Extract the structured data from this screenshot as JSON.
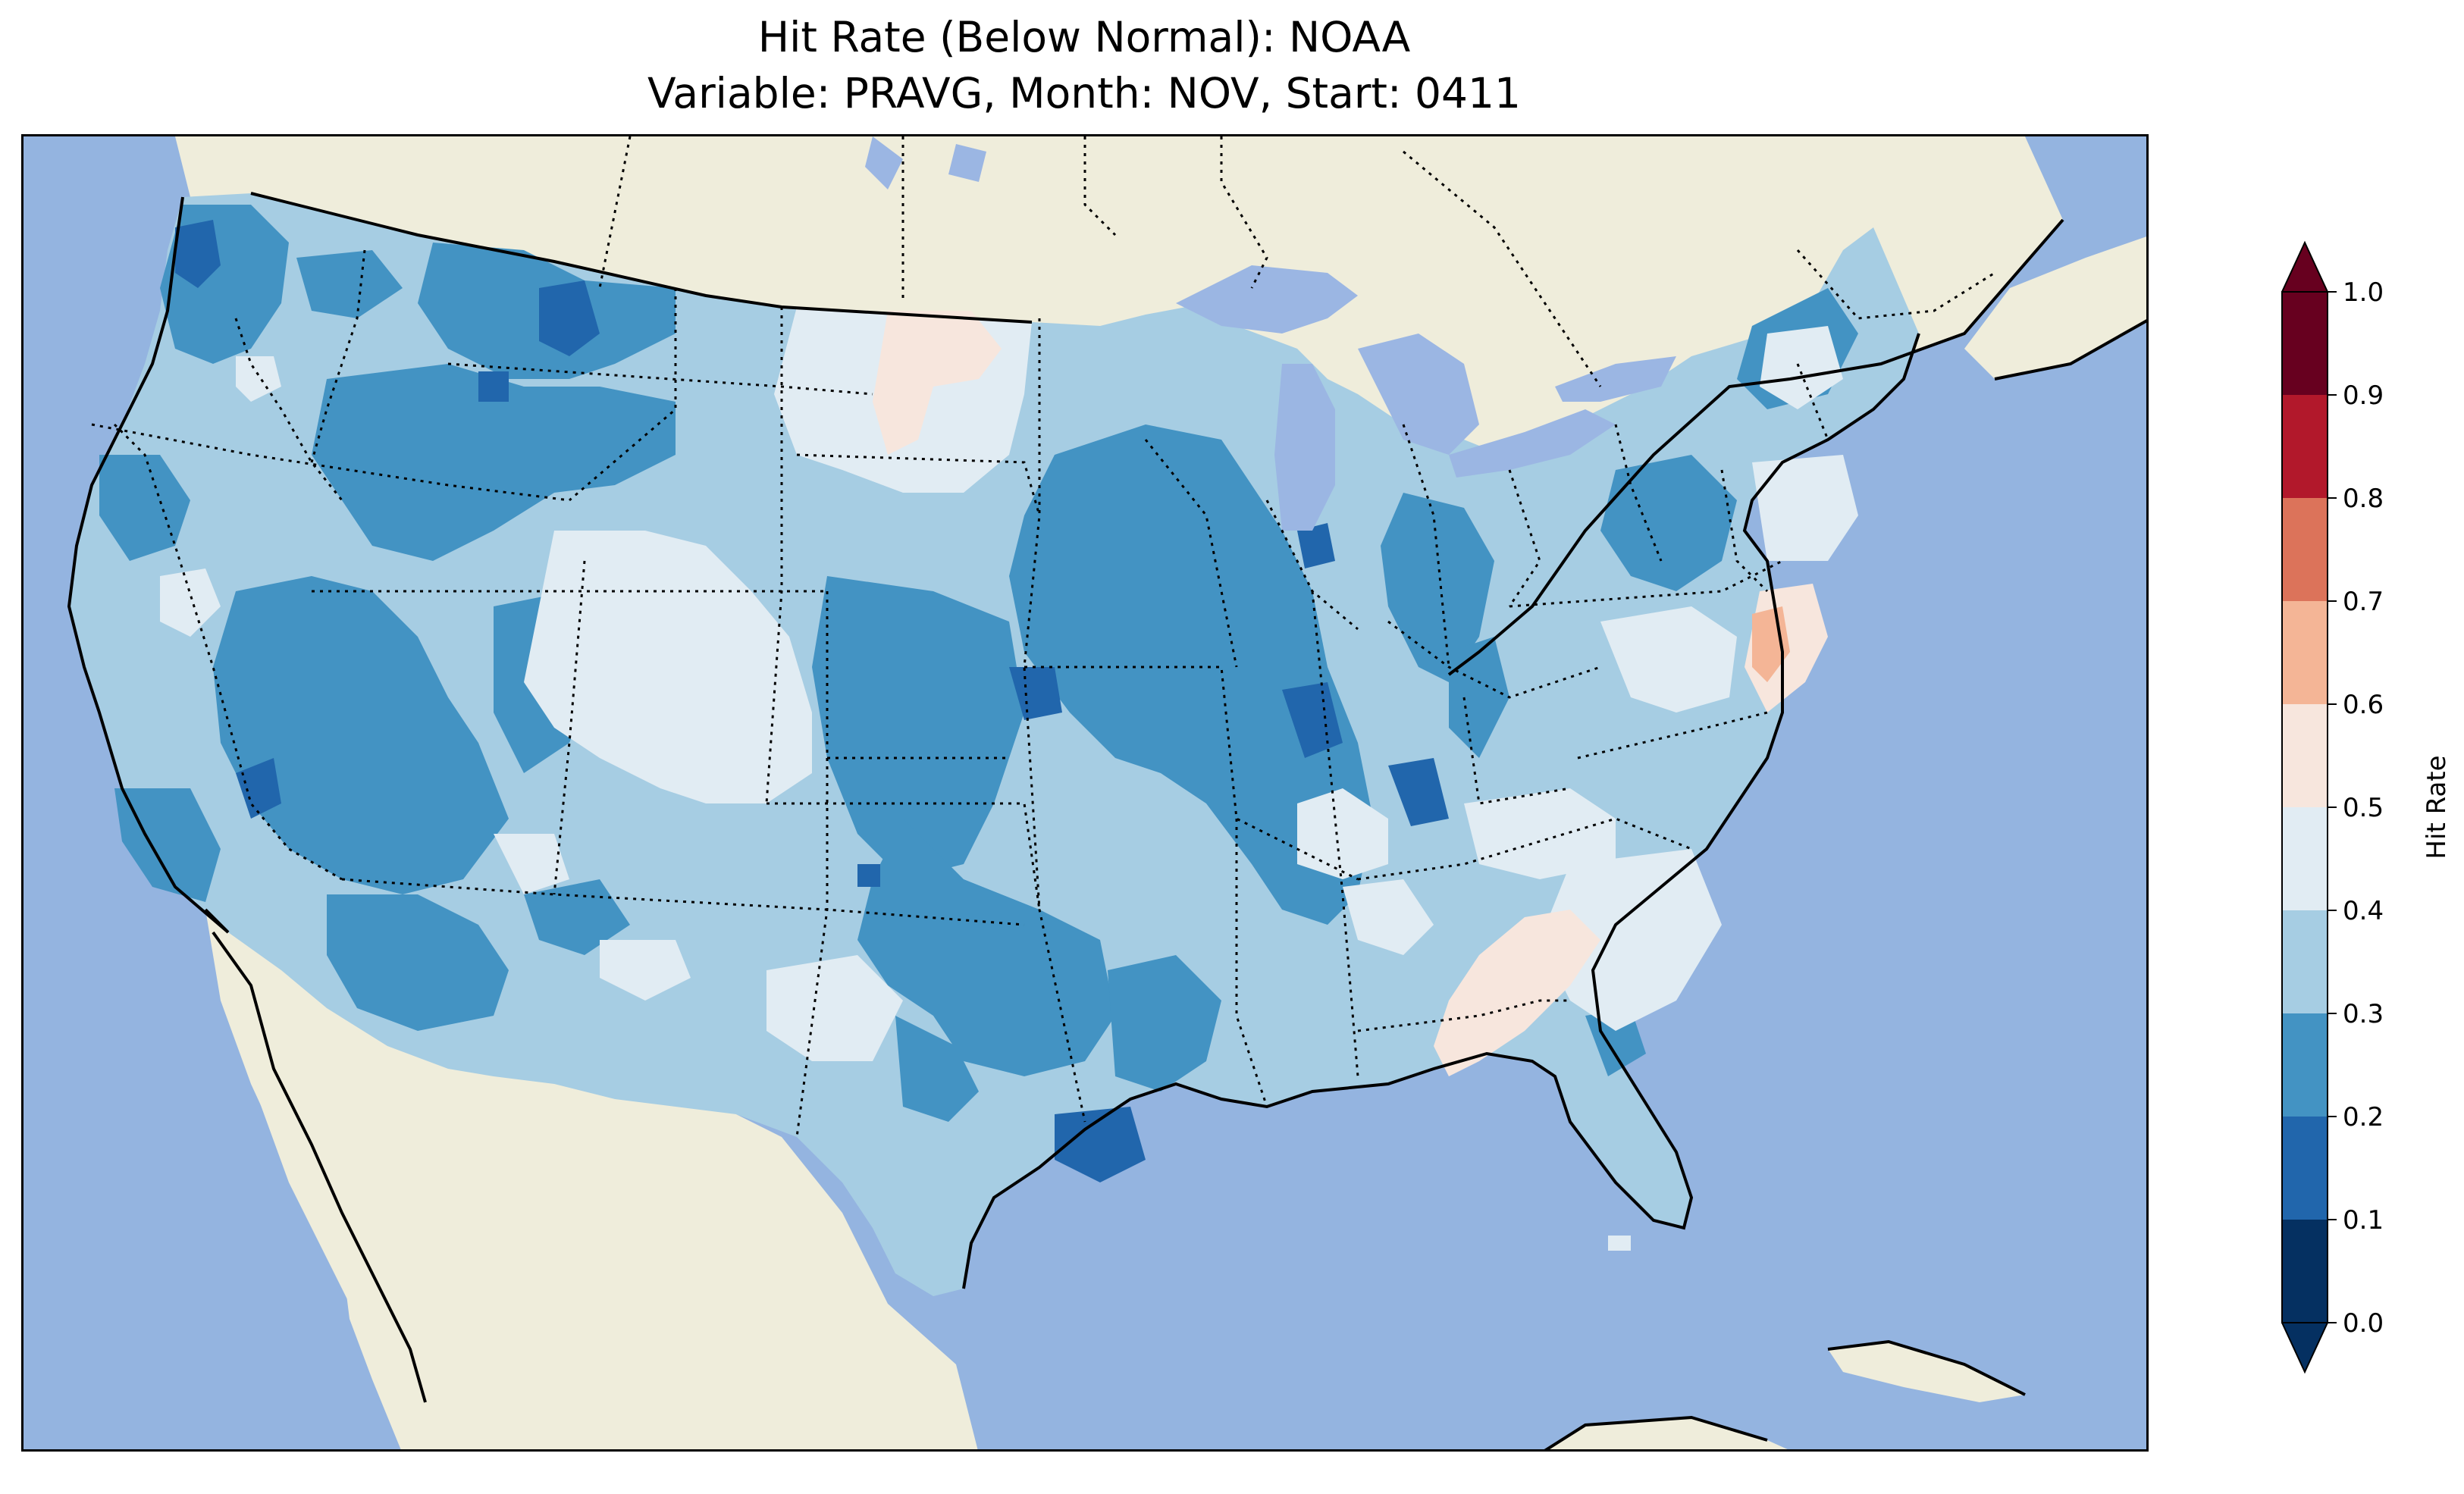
{
  "title": {
    "line1": "Hit Rate (Below Normal): NOAA",
    "line2": "Variable: PRAVG, Month: NOV, Start: 0411"
  },
  "colorbar": {
    "label": "Hit Rate",
    "extend": "both",
    "ticks": [
      "0.0",
      "0.1",
      "0.2",
      "0.3",
      "0.4",
      "0.5",
      "0.6",
      "0.7",
      "0.8",
      "0.9",
      "1.0"
    ],
    "bins": [
      {
        "min": 0.0,
        "max": 0.1,
        "color": "#053061"
      },
      {
        "min": 0.1,
        "max": 0.2,
        "color": "#2166ac"
      },
      {
        "min": 0.2,
        "max": 0.3,
        "color": "#4393c3"
      },
      {
        "min": 0.3,
        "max": 0.4,
        "color": "#a6cde3"
      },
      {
        "min": 0.4,
        "max": 0.5,
        "color": "#e1ecf3"
      },
      {
        "min": 0.5,
        "max": 0.6,
        "color": "#f7e6dd"
      },
      {
        "min": 0.6,
        "max": 0.7,
        "color": "#f4b596"
      },
      {
        "min": 0.7,
        "max": 0.8,
        "color": "#dc735a"
      },
      {
        "min": 0.8,
        "max": 0.9,
        "color": "#b2182b"
      },
      {
        "min": 0.9,
        "max": 1.0,
        "color": "#67001f"
      }
    ],
    "under_color": "#053061",
    "over_color": "#67001f"
  },
  "map": {
    "ocean_color": "#94b4e0",
    "land_color": "#efeddb",
    "lake_color": "#9bb6e3",
    "region": "Contiguous United States"
  }
}
